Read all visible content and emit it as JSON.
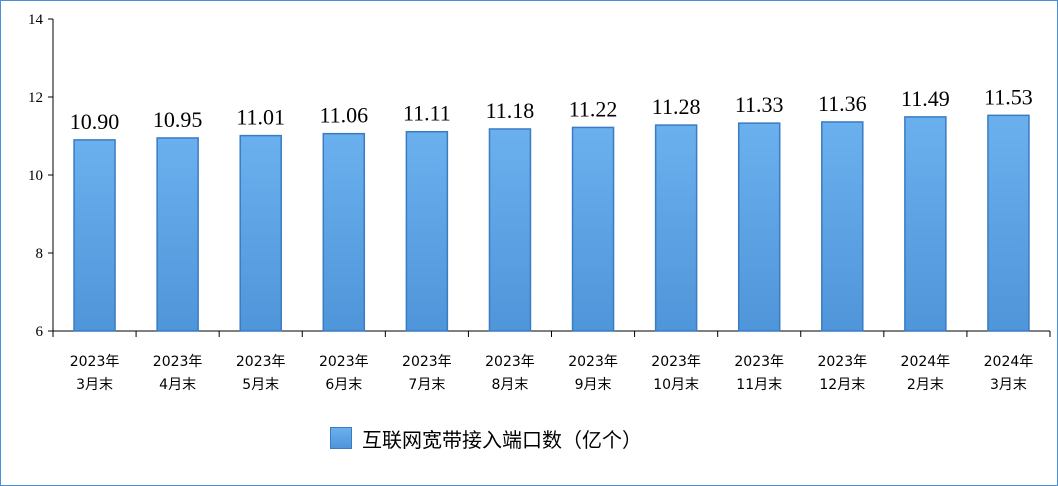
{
  "chart_data": {
    "type": "bar",
    "categories": [
      [
        "2023年",
        "3月末"
      ],
      [
        "2023年",
        "4月末"
      ],
      [
        "2023年",
        "5月末"
      ],
      [
        "2023年",
        "6月末"
      ],
      [
        "2023年",
        "7月末"
      ],
      [
        "2023年",
        "8月末"
      ],
      [
        "2023年",
        "9月末"
      ],
      [
        "2023年",
        "10月末"
      ],
      [
        "2023年",
        "11月末"
      ],
      [
        "2023年",
        "12月末"
      ],
      [
        "2024年",
        "2月末"
      ],
      [
        "2024年",
        "3月末"
      ]
    ],
    "values": [
      10.9,
      10.95,
      11.01,
      11.06,
      11.11,
      11.18,
      11.22,
      11.28,
      11.33,
      11.36,
      11.49,
      11.53
    ],
    "data_labels": [
      "10.90",
      "10.95",
      "11.01",
      "11.06",
      "11.11",
      "11.18",
      "11.22",
      "11.28",
      "11.33",
      "11.36",
      "11.49",
      "11.53"
    ],
    "series": [
      {
        "name": "互联网宽带接入端口数（亿个）"
      }
    ],
    "ylim": [
      6,
      14
    ],
    "yticks": [
      6,
      8,
      10,
      12,
      14
    ],
    "legend_position": "bottom-center",
    "grid": false,
    "colors": {
      "bar_top": "#6bb0ee",
      "bar_bottom": "#4f95d9",
      "bar_edge": "#3a7cc2",
      "frame": "#4a90d9"
    }
  }
}
